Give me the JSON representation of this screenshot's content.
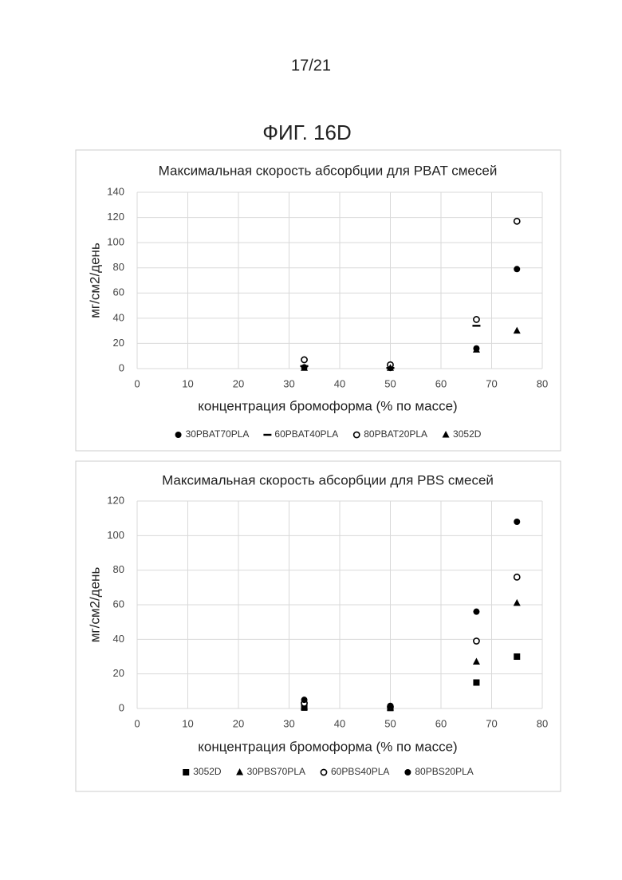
{
  "page_number": "17/21",
  "figure_label": "ФИГ. 16D",
  "chart_data": [
    {
      "type": "scatter",
      "title": "Максимальная скорость абсорбции для PBAT смесей",
      "x_label": "концентрация бромоформа (% по массе)",
      "y_label": "мг/см2/день",
      "x": [
        33,
        50,
        67,
        75
      ],
      "xlim": [
        0,
        80
      ],
      "xticks": [
        0,
        10,
        20,
        30,
        40,
        50,
        60,
        70,
        80
      ],
      "ylim": [
        0,
        140
      ],
      "yticks": [
        0,
        20,
        40,
        60,
        80,
        100,
        120,
        140
      ],
      "grid": true,
      "legend": "bottom",
      "series": [
        {
          "name": "30PBAT70PLA",
          "marker": "circle",
          "color": "#000000",
          "values": [
            1,
            0.5,
            16,
            79
          ]
        },
        {
          "name": "60PBAT40PLA",
          "marker": "dash",
          "color": "#000000",
          "values": [
            2,
            0.5,
            34,
            null
          ]
        },
        {
          "name": "80PBAT20PLA",
          "marker": "open-circle",
          "color": "#000000",
          "values": [
            7,
            3,
            39,
            117
          ]
        },
        {
          "name": "3052D",
          "marker": "triangle",
          "color": "#000000",
          "values": [
            0.5,
            0.5,
            15,
            30
          ]
        }
      ]
    },
    {
      "type": "scatter",
      "title": "Максимальная скорость абсорбции для PBS смесей",
      "x_label": "концентрация бромоформа (% по массе)",
      "y_label": "мг/см2/день",
      "x": [
        33,
        50,
        67,
        75
      ],
      "xlim": [
        0,
        80
      ],
      "xticks": [
        0,
        10,
        20,
        30,
        40,
        50,
        60,
        70,
        80
      ],
      "ylim": [
        0,
        120
      ],
      "yticks": [
        0,
        20,
        40,
        60,
        80,
        100,
        120
      ],
      "grid": true,
      "legend": "bottom",
      "series": [
        {
          "name": "3052D",
          "marker": "square",
          "color": "#000000",
          "values": [
            0.5,
            0.3,
            15,
            30
          ]
        },
        {
          "name": "30PBS70PLA",
          "marker": "triangle",
          "color": "#000000",
          "values": [
            1,
            0.5,
            27,
            61
          ]
        },
        {
          "name": "60PBS40PLA",
          "marker": "open-circle",
          "color": "#000000",
          "values": [
            3,
            1,
            39,
            76
          ]
        },
        {
          "name": "80PBS20PLA",
          "marker": "circle",
          "color": "#000000",
          "values": [
            5,
            1.5,
            56,
            108
          ]
        }
      ]
    }
  ]
}
